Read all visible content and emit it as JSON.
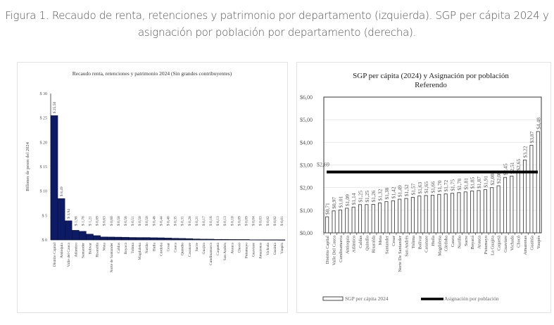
{
  "caption": {
    "line1": "Figura 1. Recaudo de renta, retenciones y patrimonio por departamento (izquierda). SGP per cápita 2024 y",
    "line2": "asignación por población por departamento (derecha)."
  },
  "colors": {
    "left_bar": "#0d1a66",
    "right_bar_outline": "#444444",
    "reference_line": "#000000",
    "caption_text": "#555555"
  },
  "chart_data": [
    {
      "type": "bar",
      "title": "Recaudo renta, retenciones y patrimonio 2024 (Sin grandes contribuyentes)",
      "xlabel": "",
      "ylabel": "Billones de pesos del 2024",
      "ylim": [
        0,
        30
      ],
      "yticks": [
        0,
        5,
        10,
        15,
        20,
        25,
        30
      ],
      "ytick_labels": [
        "$ 0",
        "$ 5",
        "$ 10",
        "$ 15",
        "$ 20",
        "$ 25",
        "$ 30"
      ],
      "grid": false,
      "categories": [
        "Distrito Capital",
        "Antioquia",
        "Valle del Cauca",
        "Atlántico",
        "Santander",
        "Bolívar",
        "Risaralda",
        "Meta",
        "Norte de Santander",
        "Caldas",
        "Boyacá",
        "Tolima",
        "Magdalena",
        "Nariño",
        "Huila",
        "Córdoba",
        "Cesar",
        "Cauca",
        "Quindío",
        "Casanare",
        "Sucre",
        "Guajira",
        "Cundinamarca",
        "Caquetá",
        "San Andrés",
        "Arauca",
        "Chocó",
        "Putumayo",
        "Guaviare",
        "Amazonas",
        "Vichada",
        "Guainía",
        "Vaupés"
      ],
      "values": [
        25.5,
        8.49,
        3.94,
        1.98,
        1.78,
        1.21,
        0.89,
        0.63,
        0.6,
        0.58,
        0.56,
        0.51,
        0.5,
        0.5,
        0.46,
        0.44,
        0.4,
        0.35,
        0.31,
        0.28,
        0.21,
        0.17,
        0.16,
        0.13,
        0.13,
        0.1,
        0.09,
        0.09,
        0.04,
        0.03,
        0.02,
        0.02,
        0.01
      ],
      "data_labels": [
        "$ 25,50",
        "$ 8,49",
        "$ 3,94",
        "$ 1,98",
        "$ 1,78",
        "$ 1,21",
        "$ 0,89",
        "$ 0,63",
        "$ 0,60",
        "$ 0,58",
        "$ 0,56",
        "$ 0,51",
        "$ 0,50",
        "$ 0,50",
        "$ 0,46",
        "$ 0,44",
        "$ 0,40",
        "$ 0,35",
        "$ 0,31",
        "$ 0,28",
        "$ 0,21",
        "$ 0,17",
        "$ 0,16",
        "$ 0,13",
        "$ 0,13",
        "$ 0,10",
        "$ 0,09",
        "$ 0,09",
        "$ 0,04",
        "$ 0,03",
        "$ 0,02",
        "$ 0,02",
        "$ 0,01"
      ]
    },
    {
      "type": "bar",
      "title": "SGP per cápita  (2024) y Asignación por población",
      "subtitle": "Referendo",
      "xlabel": "",
      "ylabel": "",
      "ylim": [
        0,
        6
      ],
      "yticks": [
        0,
        1,
        2,
        3,
        4,
        5,
        6
      ],
      "ytick_labels": [
        "$0,00",
        "$1,00",
        "$2,00",
        "$3,00",
        "$4,00",
        "$5,00",
        "$6,00"
      ],
      "grid": true,
      "legend_position": "bottom",
      "categories": [
        "Distrito Capital",
        "Valle Del Cauca",
        "Cundinamarca",
        "Antioquia",
        "Atlántico",
        "Caldas",
        "Quindío",
        "Risaralda",
        "Meta",
        "Santander",
        "Cesar",
        "Norte De Santander",
        "San Andrés",
        "Tolima",
        "Bolívar",
        "Casanare",
        "Huila",
        "Magdalena",
        "Córdoba",
        "Cauca",
        "Nariño",
        "Sucre",
        "Boyacá",
        "Arauca",
        "Putumayo",
        "La Guajira",
        "Caquetá",
        "Guaviare",
        "Vichada",
        "Chocó",
        "Amazonas",
        "Guainía",
        "Vaupés"
      ],
      "series": [
        {
          "name": "SGP per cápita 2024",
          "kind": "bar",
          "values": [
            0.71,
            0.97,
            1.01,
            1.09,
            1.14,
            1.25,
            1.25,
            1.26,
            1.32,
            1.38,
            1.42,
            1.49,
            1.52,
            1.57,
            1.63,
            1.65,
            1.66,
            1.7,
            1.72,
            1.75,
            1.78,
            1.81,
            1.85,
            1.87,
            1.91,
            2.0,
            2.08,
            2.45,
            2.51,
            2.65,
            3.22,
            3.87,
            4.48
          ],
          "data_labels": [
            "$0,71",
            "$0,97",
            "$1,01",
            "$1,09",
            "$1,14",
            "$1,25",
            "$1,25",
            "$1,26",
            "$1,32",
            "$1,38",
            "$1,42",
            "$1,49",
            "$1,52",
            "$1,57",
            "$1,63",
            "$1,65",
            "$1,66",
            "$1,70",
            "$1,72",
            "$1,75",
            "$1,78",
            "$1,81",
            "$1,85",
            "$1,87",
            "$1,91",
            "$2,00",
            "$2,08",
            "$2,45",
            "$2,51",
            "$2,65",
            "$3,22",
            "$3,87",
            "$4,48"
          ]
        },
        {
          "name": "Asignación por población",
          "kind": "line",
          "value": 2.69,
          "data_label": "$2,69"
        }
      ]
    }
  ]
}
